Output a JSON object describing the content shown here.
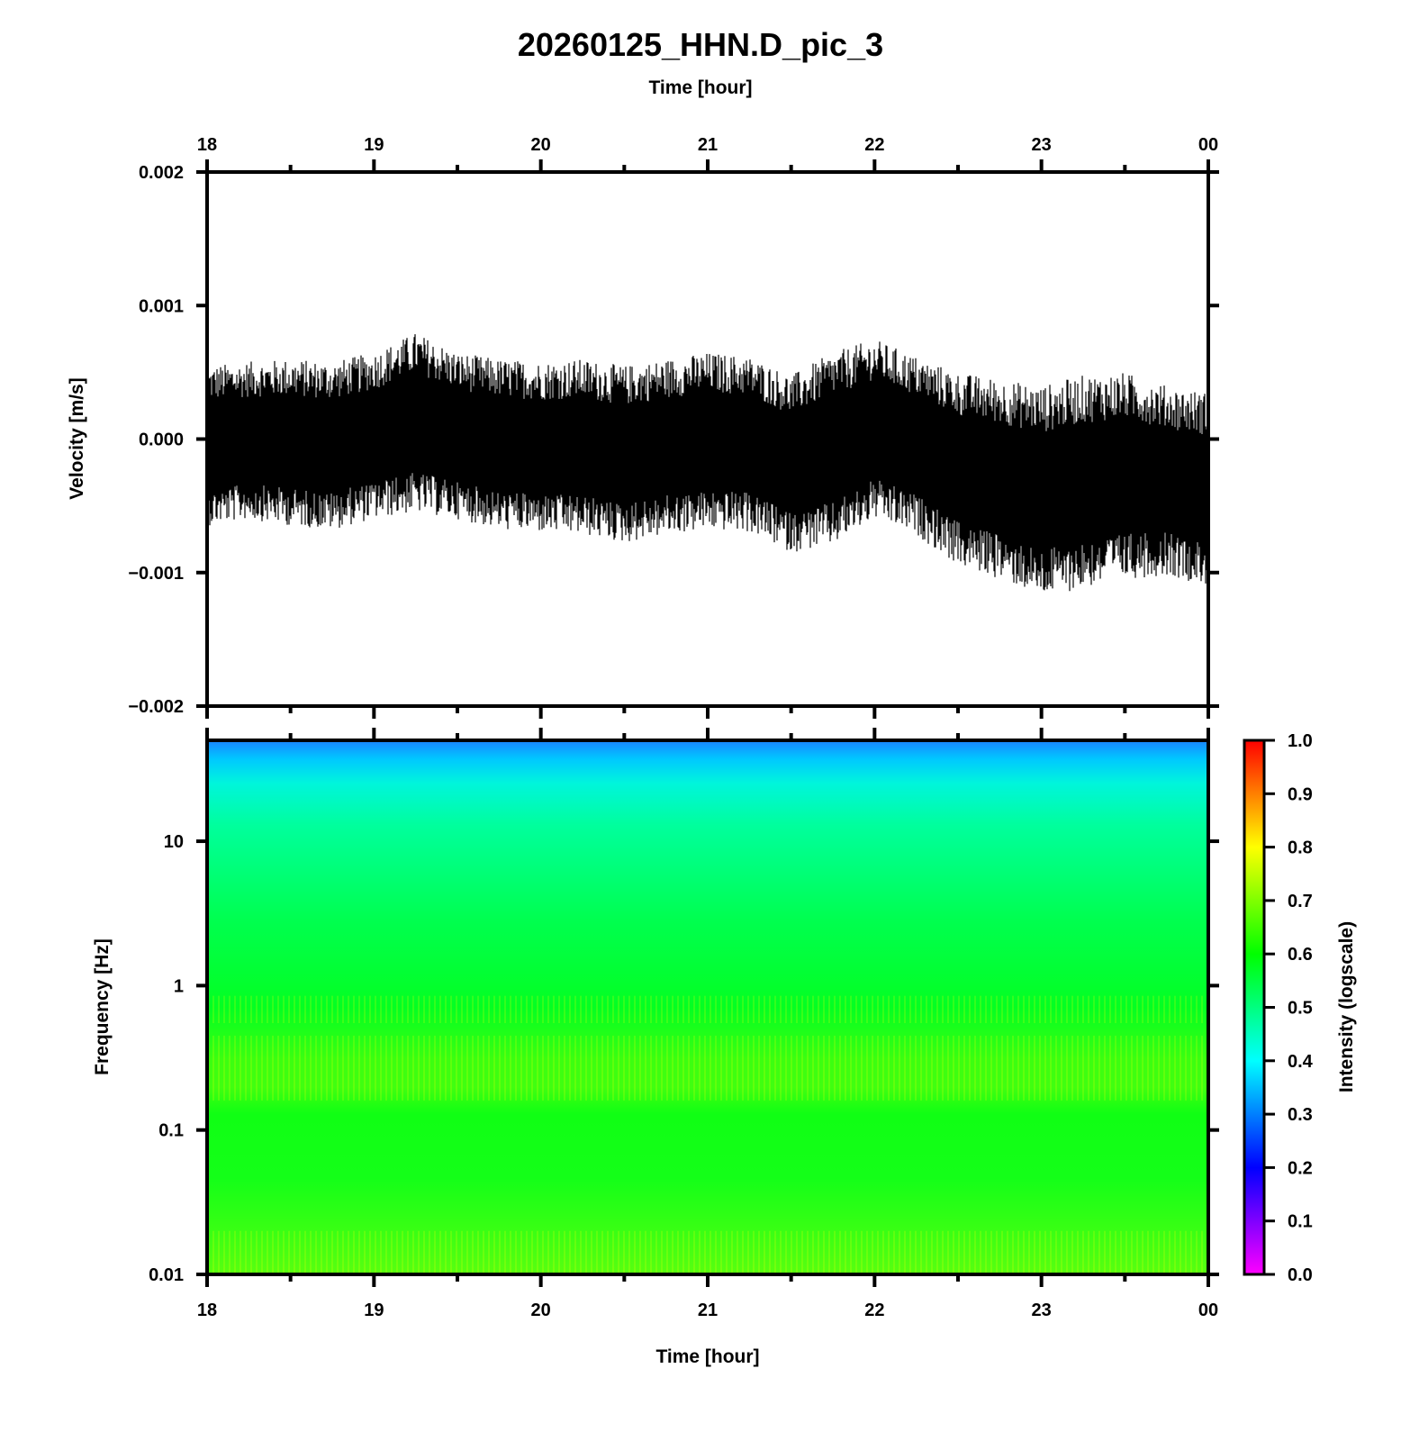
{
  "title": "20260125_HHN.D_pic_3",
  "chart_data": [
    {
      "type": "line",
      "name": "waveform",
      "xlabel": "Time [hour]",
      "ylabel": "Velocity [m/s]",
      "x_ticks": [
        "18",
        "19",
        "20",
        "21",
        "22",
        "23",
        "00"
      ],
      "x_range_hours": [
        18,
        24
      ],
      "ylim": [
        -0.002,
        0.002
      ],
      "y_ticks": [
        "0.002",
        "0.001",
        "0.000",
        "−0.001",
        "−0.002"
      ],
      "y_tick_values": [
        0.002,
        0.001,
        0.0,
        -0.001,
        -0.002
      ],
      "series": [
        {
          "line_color": "#000000",
          "x_hours": [
            18.0,
            18.25,
            18.5,
            18.75,
            19.0,
            19.25,
            19.5,
            19.75,
            20.0,
            20.25,
            20.5,
            20.75,
            21.0,
            21.25,
            21.5,
            21.75,
            22.0,
            22.25,
            22.5,
            22.75,
            23.0,
            23.25,
            23.5,
            23.75,
            24.0
          ],
          "envelope_max": [
            0.00055,
            0.00058,
            0.0006,
            0.00058,
            0.00065,
            0.0008,
            0.00065,
            0.0006,
            0.00058,
            0.0006,
            0.00055,
            0.0006,
            0.00065,
            0.00062,
            0.00048,
            0.00065,
            0.00075,
            0.00062,
            0.0005,
            0.00045,
            0.0004,
            0.00048,
            0.0005,
            0.0004,
            0.00035
          ],
          "envelope_min": [
            -0.00065,
            -0.0006,
            -0.00065,
            -0.00068,
            -0.0006,
            -0.00055,
            -0.0006,
            -0.00068,
            -0.0007,
            -0.00072,
            -0.00078,
            -0.00072,
            -0.00068,
            -0.0007,
            -0.00085,
            -0.0008,
            -0.0006,
            -0.00072,
            -0.00095,
            -0.00105,
            -0.00118,
            -0.00112,
            -0.00105,
            -0.00102,
            -0.0011
          ]
        }
      ]
    },
    {
      "type": "heatmap",
      "name": "spectrogram",
      "xlabel": "Time [hour]",
      "ylabel": "Frequency [Hz]",
      "x_ticks": [
        "18",
        "19",
        "20",
        "21",
        "22",
        "23",
        "00"
      ],
      "x_range_hours": [
        18,
        24
      ],
      "yscale": "log",
      "ylim": [
        0.01,
        50
      ],
      "y_ticks": [
        "10",
        "1",
        "0.1",
        "0.01"
      ],
      "y_tick_values": [
        10,
        1,
        0.1,
        0.01
      ],
      "colorbar": {
        "label": "Intensity (logscale)",
        "range": [
          0.0,
          1.0
        ],
        "ticks": [
          "1.0",
          "0.9",
          "0.8",
          "0.7",
          "0.6",
          "0.5",
          "0.4",
          "0.3",
          "0.2",
          "0.1",
          "0.0"
        ],
        "colormap": [
          "#ff00ff",
          "#0000ff",
          "#00ffff",
          "#00ff00",
          "#ffff00",
          "#ff0000"
        ]
      },
      "intensity_by_frequency": {
        "frequency_hz": [
          50,
          30,
          20,
          10,
          5,
          2,
          1,
          0.6,
          0.38,
          0.2,
          0.1,
          0.05,
          0.02,
          0.01
        ],
        "intensity": [
          0.32,
          0.42,
          0.47,
          0.52,
          0.55,
          0.58,
          0.6,
          0.64,
          0.67,
          0.66,
          0.62,
          0.63,
          0.66,
          0.68
        ]
      }
    }
  ]
}
